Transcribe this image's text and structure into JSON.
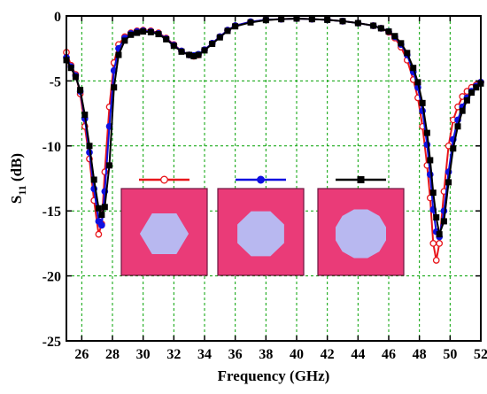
{
  "chart_data": {
    "type": "line",
    "xlabel": "Frequency (GHz)",
    "ylabel_main": "S",
    "ylabel_sub": "11",
    "ylabel_unit": " (dB)",
    "xlim": [
      25,
      52
    ],
    "ylim": [
      -25,
      0
    ],
    "x_ticks": [
      26,
      28,
      30,
      32,
      34,
      36,
      38,
      40,
      42,
      44,
      46,
      48,
      50,
      52
    ],
    "y_ticks": [
      0,
      -5,
      -10,
      -15,
      -20,
      -25
    ],
    "grid": true,
    "grid_color": "#00a000",
    "legend_placement": "center",
    "series": [
      {
        "color": "#e8161b",
        "marker": "open-circle",
        "patch_shape": "hexagon",
        "x": [
          25.0,
          25.3,
          25.6,
          25.9,
          26.2,
          26.5,
          26.8,
          27.1,
          27.3,
          27.5,
          27.8,
          28.1,
          28.4,
          28.8,
          29.2,
          29.6,
          30.0,
          30.5,
          31.0,
          31.5,
          32.0,
          32.5,
          33.0,
          33.3,
          33.6,
          34.0,
          34.5,
          35.0,
          35.5,
          36.0,
          37.0,
          38.0,
          39.0,
          40.0,
          41.0,
          42.0,
          43.0,
          44.0,
          45.0,
          45.5,
          46.0,
          46.4,
          46.8,
          47.2,
          47.6,
          47.9,
          48.2,
          48.5,
          48.7,
          48.9,
          49.1,
          49.3,
          49.6,
          49.9,
          50.2,
          50.5,
          50.8,
          51.1,
          51.4,
          51.7,
          52.0
        ],
        "y": [
          -2.8,
          -3.8,
          -4.5,
          -6.0,
          -8.5,
          -11.0,
          -14.2,
          -16.8,
          -16.0,
          -12.0,
          -7.0,
          -3.6,
          -2.2,
          -1.6,
          -1.3,
          -1.15,
          -1.1,
          -1.15,
          -1.3,
          -1.7,
          -2.2,
          -2.7,
          -3.0,
          -3.1,
          -3.0,
          -2.6,
          -2.1,
          -1.6,
          -1.1,
          -0.75,
          -0.45,
          -0.3,
          -0.25,
          -0.2,
          -0.25,
          -0.3,
          -0.4,
          -0.55,
          -0.75,
          -0.95,
          -1.25,
          -1.7,
          -2.4,
          -3.4,
          -4.9,
          -6.3,
          -8.5,
          -11.5,
          -14.0,
          -17.5,
          -18.8,
          -17.5,
          -13.5,
          -10.0,
          -8.0,
          -7.0,
          -6.2,
          -5.8,
          -5.5,
          -5.3,
          -5.1
        ]
      },
      {
        "color": "#1010e0",
        "marker": "filled-circle",
        "patch_shape": "octagon",
        "x": [
          25.0,
          25.3,
          25.6,
          25.9,
          26.2,
          26.5,
          26.8,
          27.1,
          27.3,
          27.5,
          27.8,
          28.1,
          28.4,
          28.8,
          29.2,
          29.6,
          30.0,
          30.5,
          31.0,
          31.5,
          32.0,
          32.5,
          33.0,
          33.3,
          33.6,
          34.0,
          34.5,
          35.0,
          35.5,
          36.0,
          37.0,
          38.0,
          39.0,
          40.0,
          41.0,
          42.0,
          43.0,
          44.0,
          45.0,
          45.5,
          46.0,
          46.4,
          46.8,
          47.2,
          47.6,
          47.9,
          48.2,
          48.5,
          48.7,
          48.9,
          49.1,
          49.3,
          49.6,
          49.9,
          50.2,
          50.5,
          50.8,
          51.1,
          51.4,
          51.7,
          52.0
        ],
        "y": [
          -3.2,
          -3.9,
          -4.6,
          -5.8,
          -7.9,
          -10.5,
          -13.3,
          -15.8,
          -16.1,
          -13.5,
          -8.5,
          -4.2,
          -2.5,
          -1.7,
          -1.35,
          -1.2,
          -1.15,
          -1.2,
          -1.35,
          -1.75,
          -2.25,
          -2.7,
          -3.0,
          -3.05,
          -2.95,
          -2.6,
          -2.1,
          -1.6,
          -1.1,
          -0.75,
          -0.45,
          -0.3,
          -0.25,
          -0.2,
          -0.25,
          -0.3,
          -0.4,
          -0.55,
          -0.75,
          -0.95,
          -1.2,
          -1.6,
          -2.2,
          -3.0,
          -4.3,
          -5.5,
          -7.3,
          -9.9,
          -12.2,
          -14.9,
          -16.6,
          -17.0,
          -15.0,
          -12.0,
          -9.5,
          -8.0,
          -7.0,
          -6.3,
          -5.8,
          -5.4,
          -5.1
        ]
      },
      {
        "color": "#000000",
        "marker": "filled-square",
        "patch_shape": "rounded-octagon",
        "x": [
          25.0,
          25.3,
          25.6,
          25.9,
          26.2,
          26.5,
          26.8,
          27.1,
          27.3,
          27.5,
          27.8,
          28.1,
          28.4,
          28.8,
          29.2,
          29.6,
          30.0,
          30.5,
          31.0,
          31.5,
          32.0,
          32.5,
          33.0,
          33.3,
          33.6,
          34.0,
          34.5,
          35.0,
          35.5,
          36.0,
          37.0,
          38.0,
          39.0,
          40.0,
          41.0,
          42.0,
          43.0,
          44.0,
          45.0,
          45.5,
          46.0,
          46.4,
          46.8,
          47.2,
          47.6,
          47.9,
          48.2,
          48.5,
          48.7,
          48.9,
          49.1,
          49.3,
          49.6,
          49.9,
          50.2,
          50.5,
          50.8,
          51.1,
          51.4,
          51.7,
          52.0
        ],
        "y": [
          -3.4,
          -4.0,
          -4.7,
          -5.7,
          -7.6,
          -10.0,
          -12.6,
          -14.8,
          -15.3,
          -14.7,
          -11.5,
          -5.5,
          -3.0,
          -1.9,
          -1.45,
          -1.3,
          -1.2,
          -1.25,
          -1.4,
          -1.8,
          -2.3,
          -2.75,
          -3.0,
          -3.1,
          -3.0,
          -2.65,
          -2.15,
          -1.65,
          -1.15,
          -0.8,
          -0.5,
          -0.32,
          -0.25,
          -0.2,
          -0.25,
          -0.3,
          -0.4,
          -0.55,
          -0.75,
          -0.95,
          -1.2,
          -1.55,
          -2.1,
          -2.85,
          -4.0,
          -5.1,
          -6.7,
          -9.0,
          -11.1,
          -13.6,
          -15.5,
          -16.8,
          -15.8,
          -12.8,
          -10.2,
          -8.5,
          -7.3,
          -6.5,
          -5.9,
          -5.5,
          -5.2
        ]
      }
    ]
  }
}
